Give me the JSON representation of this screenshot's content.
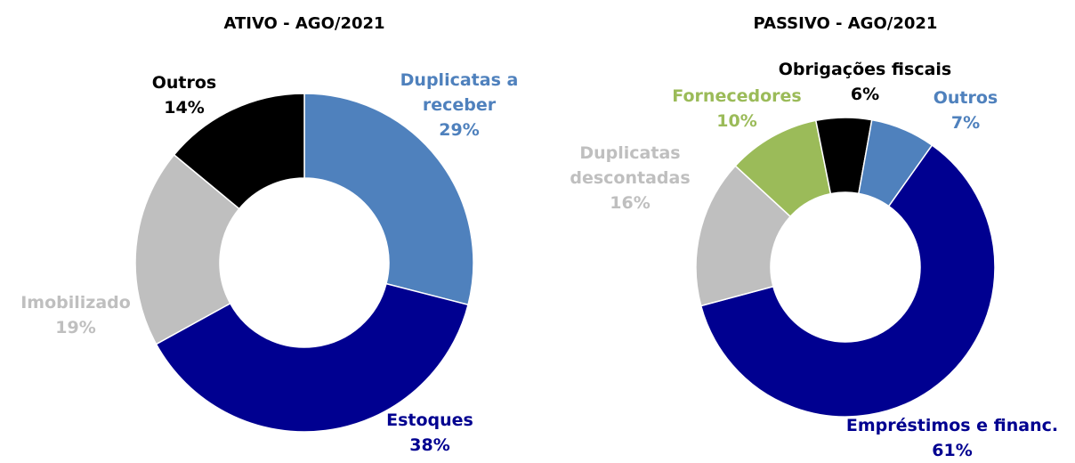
{
  "chart_data": [
    {
      "type": "pie",
      "title": "ATIVO - AGO/2021",
      "categories": [
        "Duplicatas a receber",
        "Estoques",
        "Imobilizado",
        "Outros"
      ],
      "values": [
        29,
        38,
        19,
        14
      ],
      "value_labels": [
        "29%",
        "38%",
        "19%",
        "14%"
      ],
      "colors": [
        "#4f81bd",
        "#000090",
        "#bfbfbf",
        "#000000"
      ]
    },
    {
      "type": "pie",
      "title": "PASSIVO - AGO/2021",
      "categories": [
        "Empréstimos e financ.",
        "Duplicatas descontadas",
        "Fornecedores",
        "Obrigações fiscais",
        "Outros"
      ],
      "values": [
        61,
        16,
        10,
        6,
        7
      ],
      "value_labels": [
        "61%",
        "16%",
        "10%",
        "6%",
        "7%"
      ],
      "colors": [
        "#000090",
        "#bfbfbf",
        "#9bbb59",
        "#000000",
        "#4f81bd"
      ]
    }
  ]
}
